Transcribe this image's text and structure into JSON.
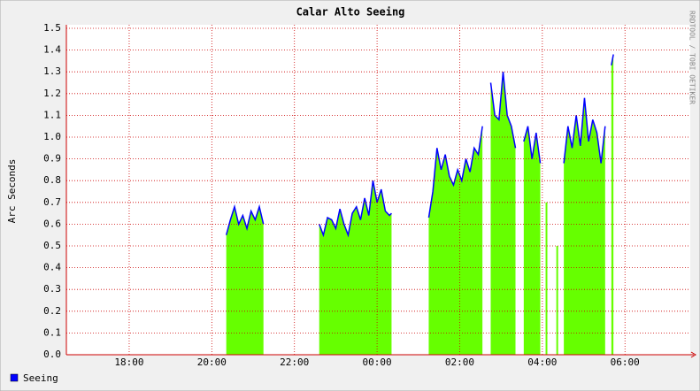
{
  "chart_data": {
    "type": "line",
    "title": "Calar Alto Seeing",
    "y_label": "Arc Seconds",
    "watermark": "RRDTOOL / TOBI OETIKER",
    "x": [
      20.35,
      20.45,
      20.55,
      20.65,
      20.75,
      20.85,
      20.95,
      21.05,
      21.15,
      21.25,
      21.35,
      22.6,
      22.7,
      22.8,
      22.9,
      23.0,
      23.1,
      23.2,
      23.3,
      23.4,
      23.5,
      23.6,
      23.7,
      23.8,
      23.9,
      24.0,
      24.1,
      24.2,
      24.3,
      24.35,
      24.5,
      25.25,
      25.35,
      25.45,
      25.55,
      25.65,
      25.75,
      25.85,
      25.95,
      26.05,
      26.15,
      26.25,
      26.35,
      26.45,
      26.55,
      26.65,
      26.75,
      26.85,
      26.95,
      27.05,
      27.15,
      27.25,
      27.35,
      27.45,
      27.55,
      27.65,
      27.75,
      27.85,
      27.95,
      28.05,
      28.1,
      28.2,
      28.36,
      28.45,
      28.52,
      28.62,
      28.72,
      28.82,
      28.92,
      29.02,
      29.12,
      29.22,
      29.32,
      29.42,
      29.52,
      29.62,
      29.67,
      29.72
    ],
    "series": [
      {
        "name": "Seeing",
        "color": "#0000ff",
        "area_color": "#66ff00",
        "values": [
          0.55,
          0.62,
          0.68,
          0.6,
          0.64,
          0.58,
          0.66,
          0.62,
          0.68,
          0.6,
          null,
          0.6,
          0.55,
          0.63,
          0.62,
          0.58,
          0.67,
          0.6,
          0.55,
          0.65,
          0.68,
          0.62,
          0.72,
          0.64,
          0.8,
          0.7,
          0.76,
          0.66,
          0.64,
          0.65,
          null,
          0.63,
          0.75,
          0.95,
          0.85,
          0.92,
          0.82,
          0.78,
          0.85,
          0.8,
          0.9,
          0.84,
          0.95,
          0.92,
          1.05,
          null,
          1.25,
          1.1,
          1.08,
          1.3,
          1.1,
          1.05,
          0.95,
          null,
          0.98,
          1.05,
          0.9,
          1.02,
          0.88,
          null,
          0.7,
          null,
          0.5,
          null,
          0.88,
          1.05,
          0.95,
          1.1,
          0.96,
          1.18,
          0.98,
          1.08,
          1.02,
          0.88,
          1.05,
          null,
          1.33,
          1.38
        ]
      }
    ],
    "xlim": [
      16.48,
      31.58
    ],
    "xticks": [
      {
        "value": 18,
        "label": "18:00"
      },
      {
        "value": 20,
        "label": "20:00"
      },
      {
        "value": 22,
        "label": "22:00"
      },
      {
        "value": 24,
        "label": "00:00"
      },
      {
        "value": 26,
        "label": "02:00"
      },
      {
        "value": 28,
        "label": "04:00"
      },
      {
        "value": 30,
        "label": "06:00"
      }
    ],
    "ylim": [
      0,
      1.5
    ],
    "yticks": [
      {
        "value": 0,
        "label": "0.0"
      },
      0.1,
      0.2,
      0.3,
      0.4,
      0.5,
      0.6,
      0.7,
      0.8,
      0.9,
      {
        "value": 1,
        "label": "1.0"
      },
      1.1,
      1.2,
      1.3,
      1.4,
      1.5
    ],
    "grid": true,
    "grid_color": "#cc0000"
  }
}
